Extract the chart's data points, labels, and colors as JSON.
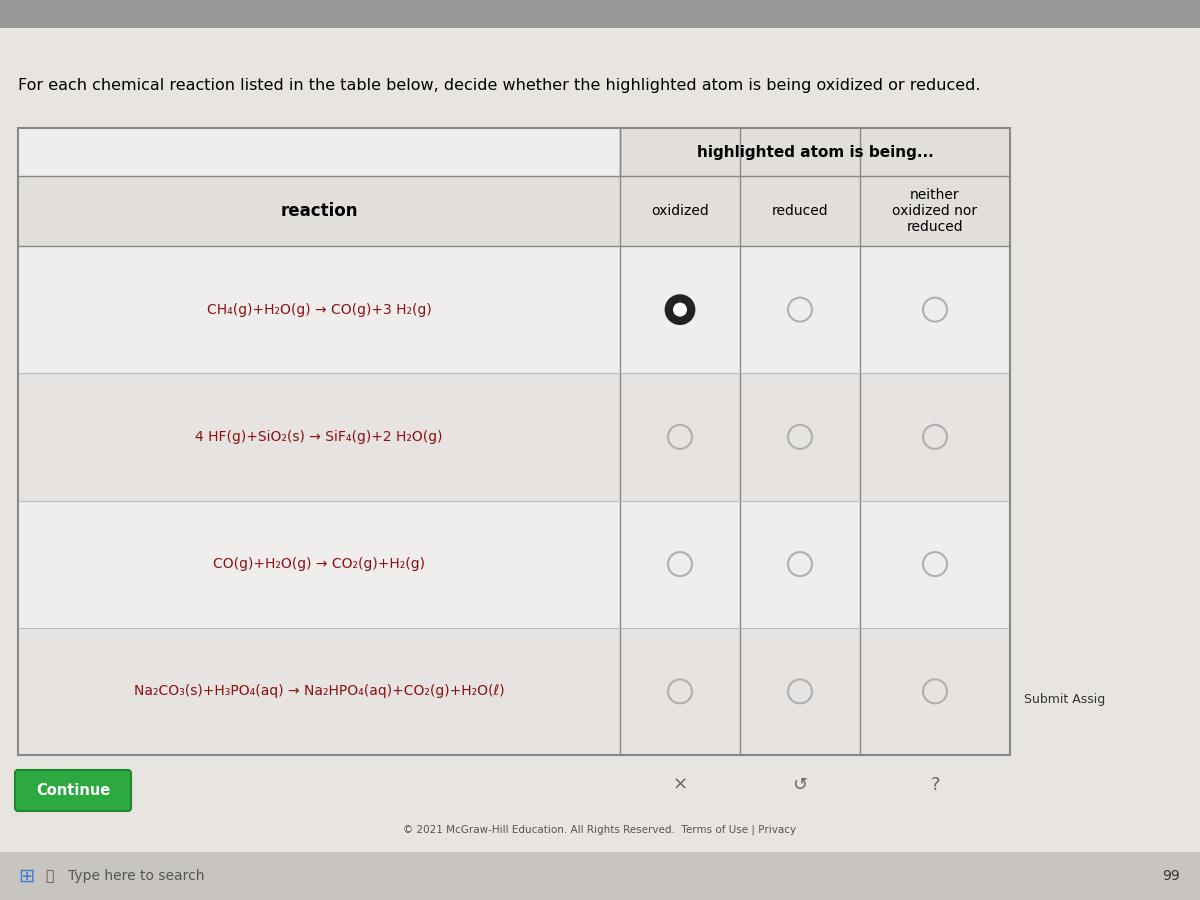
{
  "title": "For each chemical reaction listed in the table below, decide whether the highlighted atom is being oxidized or reduced.",
  "bg_color": "#d8d5d0",
  "page_bg": "#e8e5e0",
  "table_bg_light": "#f0eeec",
  "table_bg_dark": "#e6e3e0",
  "header_bg": "#e2deda",
  "col_header": "highlighted atom is being...",
  "row_label": "reaction",
  "col_labels": [
    "oxidized",
    "reduced",
    "neither\noxidized nor\nreduced"
  ],
  "reaction_color": "#8B1010",
  "highlight_color": "#cc0000",
  "reactions": [
    {
      "text": "CH₄(g)+H₂O(g) → CO(g)+3 H₂(g)",
      "selected": 0
    },
    {
      "text": "4 HF(g)+SiO₂(s) → SiF₄(g)+2 H₂O(g)",
      "selected": -1
    },
    {
      "text": "CO(g)+H₂O(g) → CO₂(g)+H₂(g)",
      "selected": -1
    },
    {
      "text": "Na₂CO₃(s)+H₃PO₄(aq) → Na₂HPO₄(aq)+CO₂(g)+H₂O(ℓ)",
      "selected": -1
    }
  ],
  "symbols_bottom": [
    "×",
    "↺",
    "?"
  ],
  "submit_text": "Submit Assig",
  "continue_btn": "Continue",
  "footer_text": "© 2021 McGraw-Hill Education. All Rights Reserved.  Terms of Use | Privacy",
  "taskbar_text": "Type here to search",
  "taskbar_num": "99",
  "top_bar_color": "#9a9799",
  "top_bar_accent": "#7a7580",
  "taskbar_color": "#c8c5c0",
  "table_border": "#888888",
  "row_border": "#bbbbbb",
  "radio_empty": "#b0b0b0",
  "radio_selected_outer": "#222222",
  "radio_selected_inner": "#ffffff"
}
